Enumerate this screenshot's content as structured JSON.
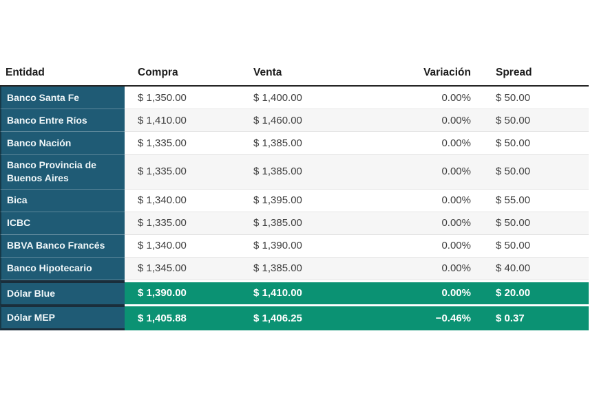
{
  "table": {
    "columns": [
      {
        "key": "entidad",
        "label": "Entidad"
      },
      {
        "key": "compra",
        "label": "Compra"
      },
      {
        "key": "venta",
        "label": "Venta"
      },
      {
        "key": "variacion",
        "label": "Variación"
      },
      {
        "key": "spread",
        "label": "Spread"
      }
    ],
    "rows": [
      {
        "entidad": "Banco Santa Fe",
        "compra": "$ 1,350.00",
        "venta": "$ 1,400.00",
        "variacion": "0.00%",
        "spread": "$ 50.00",
        "highlight": false
      },
      {
        "entidad": "Banco Entre Ríos",
        "compra": "$ 1,410.00",
        "venta": "$ 1,460.00",
        "variacion": "0.00%",
        "spread": "$ 50.00",
        "highlight": false
      },
      {
        "entidad": "Banco Nación",
        "compra": "$ 1,335.00",
        "venta": "$ 1,385.00",
        "variacion": "0.00%",
        "spread": "$ 50.00",
        "highlight": false
      },
      {
        "entidad": "Banco Provincia de Buenos Aires",
        "compra": "$ 1,335.00",
        "venta": "$ 1,385.00",
        "variacion": "0.00%",
        "spread": "$ 50.00",
        "highlight": false
      },
      {
        "entidad": "Bica",
        "compra": "$ 1,340.00",
        "venta": "$ 1,395.00",
        "variacion": "0.00%",
        "spread": "$ 55.00",
        "highlight": false
      },
      {
        "entidad": "ICBC",
        "compra": "$ 1,335.00",
        "venta": "$ 1,385.00",
        "variacion": "0.00%",
        "spread": "$ 50.00",
        "highlight": false
      },
      {
        "entidad": "BBVA Banco Francés",
        "compra": "$ 1,340.00",
        "venta": "$ 1,390.00",
        "variacion": "0.00%",
        "spread": "$ 50.00",
        "highlight": false
      },
      {
        "entidad": "Banco Hipotecario",
        "compra": "$ 1,345.00",
        "venta": "$ 1,385.00",
        "variacion": "0.00%",
        "spread": "$ 40.00",
        "highlight": false
      },
      {
        "entidad": "Dólar Blue",
        "compra": "$ 1,390.00",
        "venta": "$ 1,410.00",
        "variacion": "0.00%",
        "spread": "$ 20.00",
        "highlight": true
      },
      {
        "entidad": "Dólar MEP",
        "compra": "$ 1,405.88",
        "venta": "$ 1,406.25",
        "variacion": "−0.46%",
        "spread": "$ 0.37",
        "highlight": true
      }
    ],
    "colors": {
      "entity_column_bg": "#1f5b75",
      "highlight_row_bg": "#0b9273",
      "dark_separator": "#1a2e3b",
      "header_rule": "#222222",
      "alt_row_bg": "#f6f6f6",
      "value_text": "#3e3e3e"
    }
  }
}
